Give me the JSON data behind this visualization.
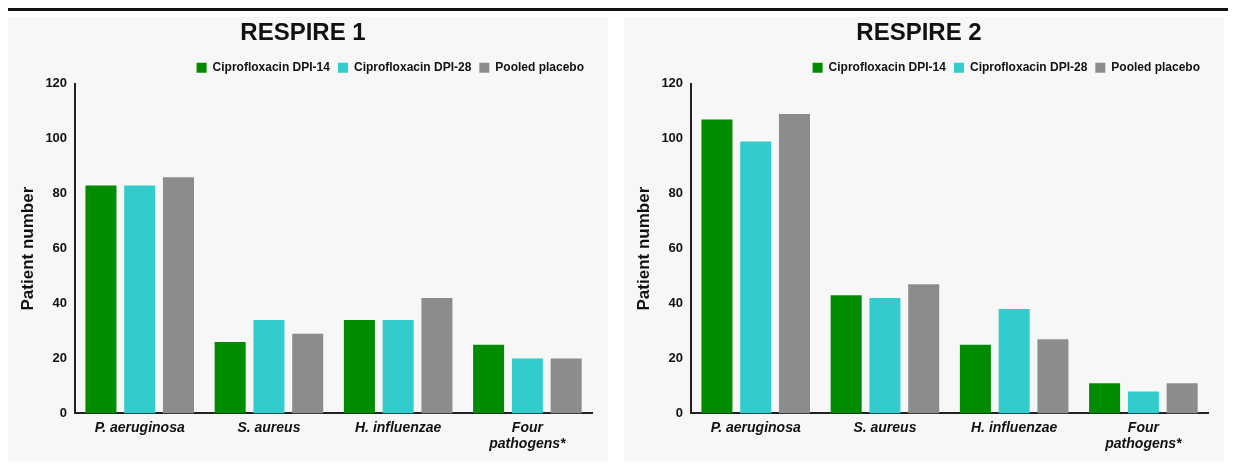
{
  "chart_data": [
    {
      "type": "bar",
      "title": "RESPIRE 1",
      "ylabel": "Patient number",
      "categories": [
        "P. aeruginosa",
        "S. aureus",
        "H. influenzae",
        "Four pathogens*"
      ],
      "series": [
        {
          "name": "Ciprofloxacin DPI-14",
          "color": "#008c00",
          "values": [
            83,
            26,
            34,
            25
          ]
        },
        {
          "name": "Ciprofloxacin DPI-28",
          "color": "#33cccc",
          "values": [
            83,
            34,
            34,
            20
          ]
        },
        {
          "name": "Pooled placebo",
          "color": "#8c8c8c",
          "values": [
            86,
            29,
            42,
            20
          ]
        }
      ],
      "ylim": [
        0,
        120
      ],
      "yticks": [
        0,
        20,
        40,
        60,
        80,
        100,
        120
      ],
      "grid": false,
      "legend": "top"
    },
    {
      "type": "bar",
      "title": "RESPIRE 2",
      "ylabel": "Patient number",
      "categories": [
        "P. aeruginosa",
        "S. aureus",
        "H. influenzae",
        "Four pathogens*"
      ],
      "series": [
        {
          "name": "Ciprofloxacin DPI-14",
          "color": "#008c00",
          "values": [
            107,
            43,
            25,
            11
          ]
        },
        {
          "name": "Ciprofloxacin DPI-28",
          "color": "#33cccc",
          "values": [
            99,
            42,
            38,
            8
          ]
        },
        {
          "name": "Pooled placebo",
          "color": "#8c8c8c",
          "values": [
            109,
            47,
            27,
            11
          ]
        }
      ],
      "ylim": [
        0,
        120
      ],
      "yticks": [
        0,
        20,
        40,
        60,
        80,
        100,
        120
      ],
      "grid": false,
      "legend": "top"
    }
  ]
}
